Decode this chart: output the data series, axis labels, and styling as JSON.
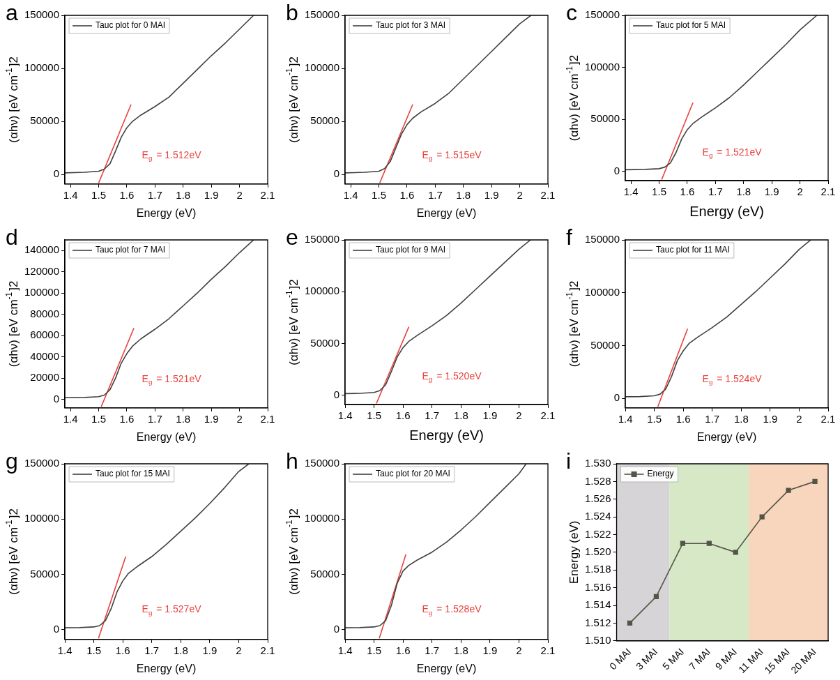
{
  "chart_data": [
    {
      "type": "line",
      "title": "a",
      "xlabel": "Energy (eV)",
      "ylabel": "(αhν) [eV cm$^{-1}$]2",
      "xlim": [
        1.38,
        2.1
      ],
      "xticks": [
        1.4,
        1.5,
        1.6,
        1.7,
        1.8,
        1.9,
        2.0,
        2.1
      ],
      "ylim": [
        -9000,
        150000
      ],
      "yticks": [
        0,
        50000,
        100000,
        150000
      ],
      "legend": "top left",
      "grid": false,
      "series": [
        {
          "name": "Tauc plot for 0 MAI",
          "color": "#404040",
          "x": [
            1.38,
            1.45,
            1.5,
            1.52,
            1.54,
            1.56,
            1.58,
            1.6,
            1.62,
            1.65,
            1.7,
            1.75,
            1.8,
            1.85,
            1.9,
            1.95,
            2.0,
            2.05
          ],
          "values": [
            1500,
            2000,
            3000,
            5000,
            10000,
            22000,
            35000,
            44000,
            50000,
            56000,
            64000,
            73000,
            86000,
            99000,
            112000,
            124000,
            137000,
            150000
          ]
        },
        {
          "color": "#e8413c",
          "x": [
            1.5,
            1.615
          ],
          "values": [
            -8000,
            66000
          ]
        }
      ],
      "annotations": [
        "E$_{g}$ = 1.512eV"
      ]
    },
    {
      "type": "line",
      "title": "b",
      "xlabel": "Energy (eV)",
      "ylabel": "(αhν) [eV cm$^{-1}$]2",
      "xlim": [
        1.38,
        2.1
      ],
      "xticks": [
        1.4,
        1.5,
        1.6,
        1.7,
        1.8,
        1.9,
        2.0,
        2.1
      ],
      "ylim": [
        -9000,
        150000
      ],
      "yticks": [
        0,
        50000,
        100000,
        150000
      ],
      "legend": "top left",
      "grid": false,
      "series": [
        {
          "name": "Tauc plot for 3 MAI",
          "color": "#404040",
          "x": [
            1.38,
            1.45,
            1.5,
            1.52,
            1.54,
            1.56,
            1.58,
            1.6,
            1.62,
            1.65,
            1.7,
            1.75,
            1.8,
            1.85,
            1.9,
            1.95,
            2.0,
            2.04
          ],
          "values": [
            1500,
            2000,
            3000,
            5500,
            12000,
            25000,
            38000,
            47000,
            53000,
            59000,
            67000,
            77000,
            90000,
            103000,
            116000,
            129000,
            142000,
            150000
          ]
        },
        {
          "color": "#e8413c",
          "x": [
            1.503,
            1.62
          ],
          "values": [
            -8000,
            66000
          ]
        }
      ],
      "annotations": [
        "E$_{g}$ = 1.515eV"
      ]
    },
    {
      "type": "line",
      "title": "c",
      "xlabel": "Energy (eV)",
      "ylabel": "(αhν) [eV cm$^{-1}$]2",
      "xlim": [
        1.38,
        2.1
      ],
      "xticks": [
        1.4,
        1.5,
        1.6,
        1.7,
        1.8,
        1.9,
        2.0,
        2.1
      ],
      "ylim": [
        -9000,
        150000
      ],
      "yticks": [
        0,
        50000,
        100000,
        150000
      ],
      "legend": "top left",
      "grid": false,
      "series": [
        {
          "name": "Tauc plot for 5 MAI",
          "color": "#404040",
          "x": [
            1.38,
            1.45,
            1.5,
            1.52,
            1.54,
            1.56,
            1.58,
            1.6,
            1.62,
            1.65,
            1.7,
            1.75,
            1.8,
            1.85,
            1.9,
            1.95,
            2.0,
            2.06
          ],
          "values": [
            1500,
            1800,
            2500,
            4000,
            8000,
            18000,
            31000,
            40000,
            46000,
            52000,
            61000,
            71000,
            83000,
            96000,
            109000,
            122000,
            136000,
            150000
          ]
        },
        {
          "color": "#e8413c",
          "x": [
            1.509,
            1.62
          ],
          "values": [
            -8000,
            66000
          ]
        }
      ],
      "annotations": [
        "E$_{g}$ = 1.521eV"
      ]
    },
    {
      "type": "line",
      "title": "d",
      "xlabel": "Energy (eV)",
      "ylabel": "(αhν) [eV cm$^{-1}$]2",
      "xlim": [
        1.38,
        2.1
      ],
      "xticks": [
        1.4,
        1.5,
        1.6,
        1.7,
        1.8,
        1.9,
        2.0,
        2.1
      ],
      "ylim": [
        -8000,
        150000
      ],
      "yticks": [
        0,
        20000,
        40000,
        60000,
        80000,
        100000,
        120000,
        140000
      ],
      "legend": "top left",
      "grid": false,
      "series": [
        {
          "name": "Tauc plot for 7 MAI",
          "color": "#404040",
          "x": [
            1.38,
            1.45,
            1.5,
            1.52,
            1.54,
            1.56,
            1.58,
            1.6,
            1.62,
            1.65,
            1.7,
            1.75,
            1.8,
            1.85,
            1.9,
            1.95,
            2.0,
            2.05
          ],
          "values": [
            1500,
            1800,
            2500,
            4000,
            9000,
            20000,
            34000,
            43000,
            50000,
            57000,
            66000,
            76000,
            88000,
            100000,
            113000,
            125000,
            138000,
            150000
          ]
        },
        {
          "color": "#e8413c",
          "x": [
            1.509,
            1.625
          ],
          "values": [
            -7000,
            67000
          ]
        }
      ],
      "annotations": [
        "E$_{g}$ = 1.521eV"
      ]
    },
    {
      "type": "line",
      "title": "e",
      "xlabel": "Energy (eV)",
      "ylabel": "(αhν) [eV cm$^{-1}$]2",
      "xlim": [
        1.4,
        2.1
      ],
      "xticks": [
        1.4,
        1.5,
        1.6,
        1.7,
        1.8,
        1.9,
        2.0,
        2.1
      ],
      "ylim": [
        -9000,
        150000
      ],
      "yticks": [
        0,
        50000,
        100000,
        150000
      ],
      "legend": "top left",
      "grid": false,
      "series": [
        {
          "name": "Tauc plot for 9 MAI",
          "color": "#404040",
          "x": [
            1.4,
            1.45,
            1.5,
            1.52,
            1.54,
            1.56,
            1.58,
            1.6,
            1.62,
            1.65,
            1.7,
            1.75,
            1.8,
            1.85,
            1.9,
            1.95,
            2.0,
            2.04
          ],
          "values": [
            1500,
            1800,
            2600,
            4500,
            10000,
            23000,
            37000,
            46000,
            52000,
            58000,
            67000,
            77000,
            89000,
            102000,
            115000,
            128000,
            141000,
            150000
          ]
        },
        {
          "color": "#e8413c",
          "x": [
            1.508,
            1.62
          ],
          "values": [
            -8000,
            66000
          ]
        }
      ],
      "annotations": [
        "E$_{g}$ = 1.520eV"
      ]
    },
    {
      "type": "line",
      "title": "f",
      "xlabel": "Energy (eV)",
      "ylabel": "(αhν) [eV cm$^{-1}$]2",
      "xlim": [
        1.4,
        2.1
      ],
      "xticks": [
        1.4,
        1.5,
        1.6,
        1.7,
        1.8,
        1.9,
        2.0,
        2.1
      ],
      "ylim": [
        -9000,
        150000
      ],
      "yticks": [
        0,
        50000,
        100000,
        150000
      ],
      "legend": "top left",
      "grid": false,
      "series": [
        {
          "name": "Tauc plot for 11 MAI",
          "color": "#404040",
          "x": [
            1.4,
            1.45,
            1.5,
            1.52,
            1.54,
            1.56,
            1.58,
            1.6,
            1.62,
            1.65,
            1.7,
            1.75,
            1.8,
            1.85,
            1.9,
            1.95,
            2.0,
            2.04
          ],
          "values": [
            1500,
            1700,
            2400,
            4000,
            9000,
            21000,
            36000,
            45000,
            52000,
            58000,
            67000,
            77000,
            89000,
            101000,
            114000,
            127000,
            141000,
            150000
          ]
        },
        {
          "color": "#e8413c",
          "x": [
            1.512,
            1.615
          ],
          "values": [
            -8000,
            66000
          ]
        }
      ],
      "annotations": [
        "E$_{g}$ = 1.524eV"
      ]
    },
    {
      "type": "line",
      "title": "g",
      "xlabel": "Energy (eV)",
      "ylabel": "(αhν) [eV cm$^{-1}$]2",
      "xlim": [
        1.4,
        2.1
      ],
      "xticks": [
        1.4,
        1.5,
        1.6,
        1.7,
        1.8,
        1.9,
        2.0,
        2.1
      ],
      "ylim": [
        -9000,
        150000
      ],
      "yticks": [
        0,
        50000,
        100000,
        150000
      ],
      "legend": "top left",
      "grid": false,
      "series": [
        {
          "name": "Tauc plot for 15 MAI",
          "color": "#404040",
          "x": [
            1.4,
            1.45,
            1.5,
            1.52,
            1.54,
            1.56,
            1.58,
            1.6,
            1.62,
            1.65,
            1.7,
            1.75,
            1.8,
            1.85,
            1.9,
            1.95,
            2.0,
            2.035
          ],
          "values": [
            1500,
            1700,
            2300,
            3500,
            8000,
            19000,
            34000,
            44000,
            51000,
            57000,
            66000,
            77000,
            89000,
            101000,
            114000,
            128000,
            143000,
            150000
          ]
        },
        {
          "color": "#e8413c",
          "x": [
            1.516,
            1.61
          ],
          "values": [
            -8000,
            66000
          ]
        }
      ],
      "annotations": [
        "E$_{g}$ = 1.527eV"
      ]
    },
    {
      "type": "line",
      "title": "h",
      "xlabel": "Energy (eV)",
      "ylabel": "(αhν) [eV cm$^{-1}$]2",
      "xlim": [
        1.4,
        2.1
      ],
      "xticks": [
        1.4,
        1.5,
        1.6,
        1.7,
        1.8,
        1.9,
        2.0,
        2.1
      ],
      "ylim": [
        -9000,
        150000
      ],
      "yticks": [
        0,
        50000,
        100000,
        150000
      ],
      "legend": "top left",
      "grid": false,
      "series": [
        {
          "name": "Tauc plot for 20 MAI",
          "color": "#404040",
          "x": [
            1.4,
            1.45,
            1.5,
            1.52,
            1.54,
            1.56,
            1.58,
            1.6,
            1.62,
            1.65,
            1.7,
            1.75,
            1.8,
            1.85,
            1.9,
            1.95,
            2.0,
            2.025
          ],
          "values": [
            1500,
            1700,
            2300,
            3500,
            8000,
            22000,
            42000,
            53000,
            58000,
            63000,
            70000,
            79000,
            90000,
            102000,
            115000,
            128000,
            141000,
            150000
          ]
        },
        {
          "color": "#e8413c",
          "x": [
            1.518,
            1.61
          ],
          "values": [
            -8000,
            68000
          ]
        }
      ],
      "annotations": [
        "E$_{g}$ = 1.528eV"
      ]
    },
    {
      "type": "line",
      "title": "i",
      "ylabel": "Energy (eV)",
      "categories": [
        "0 MAI",
        "3 MAI",
        "5 MAI",
        "7 MAI",
        "9 MAI",
        "11 MAI",
        "15 MAI",
        "20 MAI"
      ],
      "ylim": [
        1.51,
        1.53
      ],
      "yticks": [
        {
          "value": 1.51,
          "label": "1.510"
        },
        {
          "value": 1.512,
          "label": "1.512"
        },
        {
          "value": 1.514,
          "label": "1.514"
        },
        {
          "value": 1.516,
          "label": "1.516"
        },
        {
          "value": 1.518,
          "label": "1.518"
        },
        {
          "value": 1.52,
          "label": "1.520"
        },
        {
          "value": 1.522,
          "label": "1.522"
        },
        {
          "value": 1.524,
          "label": "1.524"
        },
        {
          "value": 1.526,
          "label": "1.526"
        },
        {
          "value": 1.528,
          "label": "1.528"
        },
        {
          "value": 1.53,
          "label": "1.530"
        }
      ],
      "legend": "top left",
      "grid": false,
      "marker": "square",
      "series": [
        {
          "name": "Energy",
          "color": "#545447",
          "values": [
            1.512,
            1.515,
            1.521,
            1.521,
            1.52,
            1.524,
            1.527,
            1.528
          ]
        }
      ],
      "bands": [
        {
          "axis": "x",
          "from": "0 MAI",
          "to": "3 MAI",
          "color": "#d6d4d7"
        },
        {
          "axis": "x",
          "from": "5 MAI",
          "to": "9 MAI",
          "color": "#d6e8c6"
        },
        {
          "axis": "x",
          "from": "11 MAI",
          "to": "20 MAI",
          "color": "#f8d5bd"
        }
      ]
    }
  ]
}
